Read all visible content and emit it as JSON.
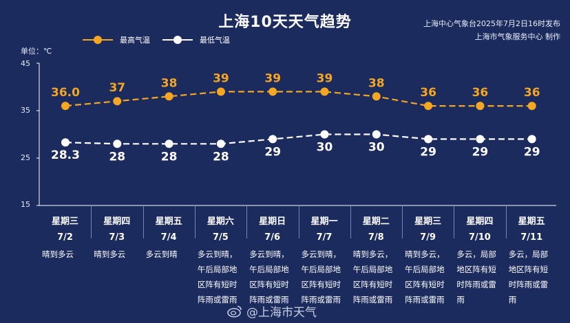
{
  "header": {
    "title": "上海10天天气趋势",
    "source_line1": "上海中心气象台2025年7月2日16时发布",
    "source_line2": "上海市气象服务中心 制作"
  },
  "unit_label": "单位：℃",
  "legend": {
    "high": "最高气温",
    "low": "最低气温"
  },
  "colors": {
    "background": "#1c2b5e",
    "high": "#f5a623",
    "low": "#ffffff"
  },
  "chart_data": {
    "type": "line",
    "x": [
      "7/2",
      "7/3",
      "7/4",
      "7/5",
      "7/6",
      "7/7",
      "7/8",
      "7/9",
      "7/10",
      "7/11"
    ],
    "series": [
      {
        "name": "最高气温",
        "values": [
          36.0,
          37,
          38,
          39,
          39,
          39,
          38,
          36,
          36,
          36
        ],
        "labels": [
          "36.0",
          "37",
          "38",
          "39",
          "39",
          "39",
          "38",
          "36",
          "36",
          "36"
        ]
      },
      {
        "name": "最低气温",
        "values": [
          28.3,
          28,
          28,
          28,
          29,
          30,
          30,
          29,
          29,
          29
        ],
        "labels": [
          "28.3",
          "28",
          "28",
          "28",
          "29",
          "30",
          "30",
          "29",
          "29",
          "29"
        ]
      }
    ],
    "yticks": [
      "45",
      "35",
      "25",
      "15"
    ],
    "ylim": [
      15,
      45
    ],
    "xlabel": "",
    "ylabel": ""
  },
  "days": [
    {
      "weekday": "星期三",
      "date": "7/2",
      "weather": "晴到多云"
    },
    {
      "weekday": "星期四",
      "date": "7/3",
      "weather": "晴到多云"
    },
    {
      "weekday": "星期五",
      "date": "7/4",
      "weather": "多云到晴"
    },
    {
      "weekday": "星期六",
      "date": "7/5",
      "weather": "多云到晴，午后局部地区阵有短时阵雨或雷雨"
    },
    {
      "weekday": "星期日",
      "date": "7/6",
      "weather": "多云到晴，午后局部地区阵有短时阵雨或雷雨"
    },
    {
      "weekday": "星期一",
      "date": "7/7",
      "weather": "多云到晴，午后局部地区阵有短时阵雨或雷雨"
    },
    {
      "weekday": "星期二",
      "date": "7/8",
      "weather": "晴到多云，午后局部地区阵有短时阵雨或雷雨"
    },
    {
      "weekday": "星期三",
      "date": "7/9",
      "weather": "晴到多云，午后局部地区阵有短时阵雨或雷雨"
    },
    {
      "weekday": "星期四",
      "date": "7/10",
      "weather": "多云，局部地区阵有短时阵雨或雷雨"
    },
    {
      "weekday": "星期五",
      "date": "7/11",
      "weather": "多云，局部地区阵有短时阵雨或雷雨"
    }
  ],
  "watermark": "@上海市天气"
}
